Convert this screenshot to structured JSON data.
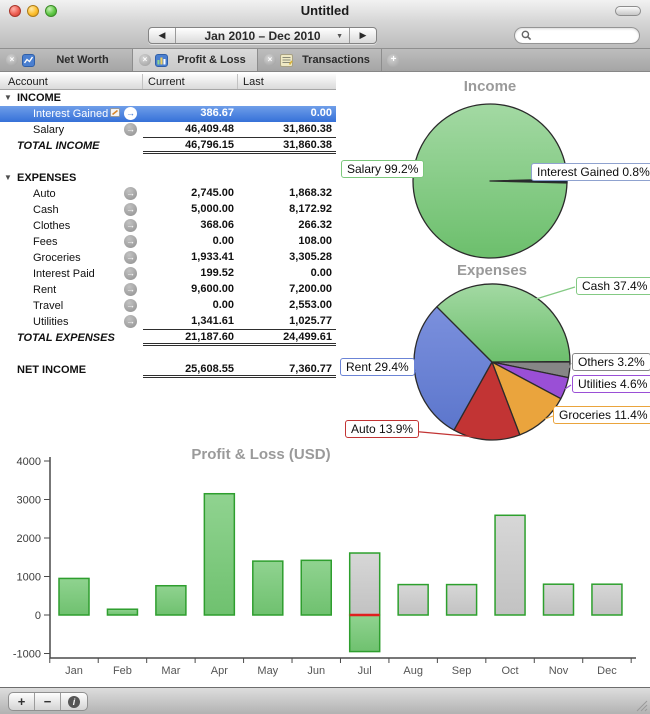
{
  "window": {
    "title": "Untitled"
  },
  "toolbar": {
    "date_range": "Jan 2010 – Dec 2010",
    "prev_glyph": "◀",
    "next_glyph": "▶",
    "dropdown_glyph": "▼",
    "search_value": ""
  },
  "tab_bar": {
    "close_glyph": "×",
    "add_label": "+",
    "tabs": [
      {
        "label": "Net Worth",
        "icon": "line-chart-icon",
        "active": false
      },
      {
        "label": "Profit & Loss",
        "icon": "bar-chart-icon",
        "active": true
      },
      {
        "label": "Transactions",
        "icon": "ledger-icon",
        "active": false
      }
    ]
  },
  "table": {
    "columns": [
      "Account",
      "Current",
      "Last"
    ],
    "disclosure_glyph": "▼",
    "row_arrow_glyph": "→",
    "rows": [
      {
        "type": "section",
        "label": "INCOME"
      },
      {
        "type": "account",
        "label": "Interest Gained",
        "current": "386.67",
        "last": "0.00",
        "selected": true,
        "badge": true
      },
      {
        "type": "account",
        "label": "Salary",
        "current": "46,409.48",
        "last": "31,860.38",
        "rule": "single"
      },
      {
        "type": "total",
        "label": "TOTAL INCOME",
        "current": "46,796.15",
        "last": "31,860.38",
        "rule": "double"
      },
      {
        "type": "blank"
      },
      {
        "type": "section",
        "label": "EXPENSES"
      },
      {
        "type": "account",
        "label": "Auto",
        "current": "2,745.00",
        "last": "1,868.32"
      },
      {
        "type": "account",
        "label": "Cash",
        "current": "5,000.00",
        "last": "8,172.92"
      },
      {
        "type": "account",
        "label": "Clothes",
        "current": "368.06",
        "last": "266.32"
      },
      {
        "type": "account",
        "label": "Fees",
        "current": "0.00",
        "last": "108.00"
      },
      {
        "type": "account",
        "label": "Groceries",
        "current": "1,933.41",
        "last": "3,305.28"
      },
      {
        "type": "account",
        "label": "Interest Paid",
        "current": "199.52",
        "last": "0.00"
      },
      {
        "type": "account",
        "label": "Rent",
        "current": "9,600.00",
        "last": "7,200.00"
      },
      {
        "type": "account",
        "label": "Travel",
        "current": "0.00",
        "last": "2,553.00"
      },
      {
        "type": "account",
        "label": "Utilities",
        "current": "1,341.61",
        "last": "1,025.77",
        "rule": "single"
      },
      {
        "type": "total",
        "label": "TOTAL EXPENSES",
        "current": "21,187.60",
        "last": "24,499.61",
        "rule": "double"
      },
      {
        "type": "blank"
      },
      {
        "type": "net",
        "label": "NET INCOME",
        "current": "25,608.55",
        "last": "7,360.77",
        "rule": "double"
      }
    ]
  },
  "charts": {
    "income": {
      "type": "pie",
      "title": "Income",
      "slices": [
        {
          "label": "Interest Gained",
          "pct": 0.8,
          "color": "#1d2b39",
          "box_color": "#8fa2cf",
          "display": "Interest Gained 0.8%",
          "selected": true
        },
        {
          "label": "Salary",
          "pct": 99.2,
          "color": "#7cc87c",
          "display": "Salary 99.2%"
        }
      ]
    },
    "expenses": {
      "type": "pie",
      "title": "Expenses",
      "slices": [
        {
          "label": "Others",
          "pct": 3.2,
          "color": "#868686",
          "display": "Others 3.2%"
        },
        {
          "label": "Utilities",
          "pct": 4.6,
          "color": "#9a4fd6",
          "display": "Utilities 4.6%"
        },
        {
          "label": "Groceries",
          "pct": 11.4,
          "color": "#eaa43d",
          "display": "Groceries 11.4%"
        },
        {
          "label": "Auto",
          "pct": 13.9,
          "color": "#c23434",
          "display": "Auto 13.9%"
        },
        {
          "label": "Rent",
          "pct": 29.4,
          "color": "#6b84d6",
          "display": "Rent 29.4%"
        },
        {
          "label": "Cash",
          "pct": 37.4,
          "color": "#84ca84",
          "display": "Cash 37.4%"
        }
      ]
    },
    "profit_loss": {
      "type": "bar",
      "title": "Profit & Loss (USD)",
      "months": [
        "Jan",
        "Feb",
        "Mar",
        "Apr",
        "May",
        "Jun",
        "Jul",
        "Aug",
        "Sep",
        "Oct",
        "Nov",
        "Dec"
      ],
      "y_ticks": [
        4000,
        3000,
        2000,
        1000,
        0,
        -1000
      ],
      "ylim": [
        -1000,
        4000
      ],
      "series": [
        {
          "name": "actual",
          "color": "#7dc87d",
          "values": [
            950,
            150,
            760,
            3150,
            1400,
            1420,
            -950,
            null,
            null,
            null,
            null,
            null
          ]
        },
        {
          "name": "projected",
          "color": "#cacaca",
          "values": [
            null,
            null,
            null,
            null,
            null,
            null,
            1610,
            790,
            790,
            2590,
            800,
            800
          ]
        }
      ],
      "zero_marker": {
        "month": "Jul",
        "color": "#e01f1f"
      }
    }
  },
  "bottom_bar": {
    "buttons": [
      {
        "label": "+",
        "name": "add-account-button"
      },
      {
        "label": "−",
        "name": "remove-account-button"
      },
      {
        "label": "i",
        "name": "info-button"
      }
    ]
  }
}
